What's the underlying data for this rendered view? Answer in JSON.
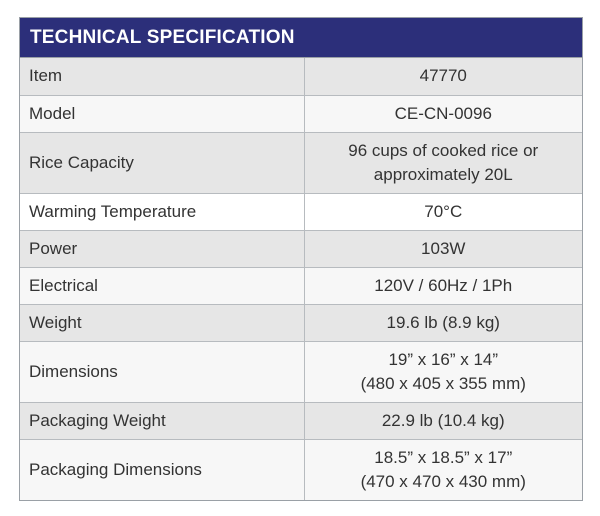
{
  "table": {
    "title": "TECHNICAL SPECIFICATION",
    "rows": [
      {
        "label": "Item",
        "value": "47770"
      },
      {
        "label": "Model",
        "value": "CE-CN-0096"
      },
      {
        "label": "Rice Capacity",
        "value_line1": "96 cups of cooked rice or",
        "value_line2": "approximately 20L"
      },
      {
        "label": "Warming Temperature",
        "value": "70°C"
      },
      {
        "label": "Power",
        "value": "103W"
      },
      {
        "label": "Electrical",
        "value": "120V / 60Hz / 1Ph"
      },
      {
        "label": "Weight",
        "value": "19.6 lb (8.9 kg)"
      },
      {
        "label": "Dimensions",
        "value_line1": "19” x 16” x 14”",
        "value_line2": "(480 x 405 x 355 mm)"
      },
      {
        "label": "Packaging Weight",
        "value": "22.9 lb (10.4 kg)"
      },
      {
        "label": "Packaging Dimensions",
        "value_line1": "18.5” x 18.5” x 17”",
        "value_line2": "(470 x 470 x 430 mm)"
      }
    ]
  }
}
